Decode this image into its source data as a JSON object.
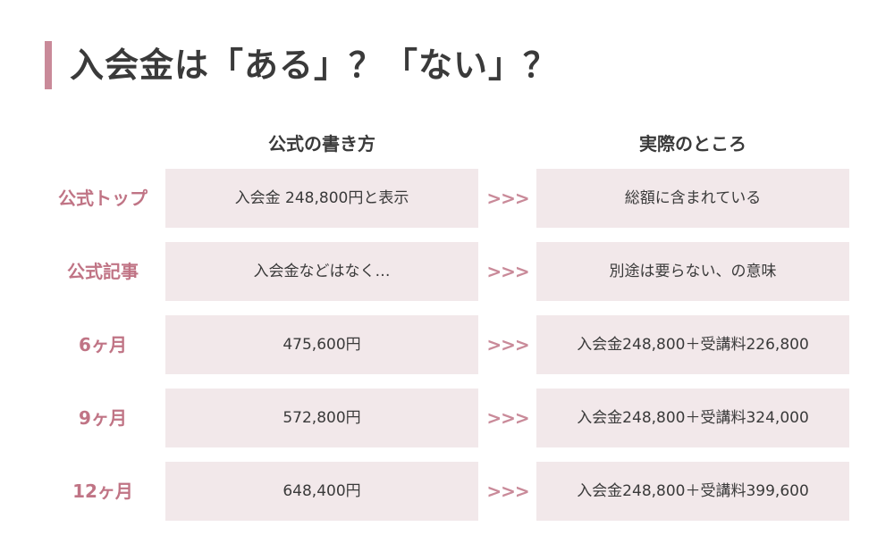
{
  "title": "入会金は「ある」？「ない」？",
  "headers": {
    "official": "公式の書き方",
    "actual": "実際のところ"
  },
  "arrow_text": ">>>",
  "colors": {
    "accent": "#c98a99",
    "label": "#c07485",
    "cell_bg": "#f2e8ea",
    "text": "#3a3a3a"
  },
  "rows": [
    {
      "label": "公式トップ",
      "official": "入会金 248,800円と表示",
      "actual": "総額に含まれている"
    },
    {
      "label": "公式記事",
      "official": "入会金などはなく…",
      "actual": "別途は要らない、の意味"
    },
    {
      "label": "6ヶ月",
      "official": "475,600円",
      "actual": "入会金248,800＋受講料226,800"
    },
    {
      "label": "9ヶ月",
      "official": "572,800円",
      "actual": "入会金248,800＋受講料324,000"
    },
    {
      "label": "12ヶ月",
      "official": "648,400円",
      "actual": "入会金248,800＋受講料399,600"
    }
  ]
}
